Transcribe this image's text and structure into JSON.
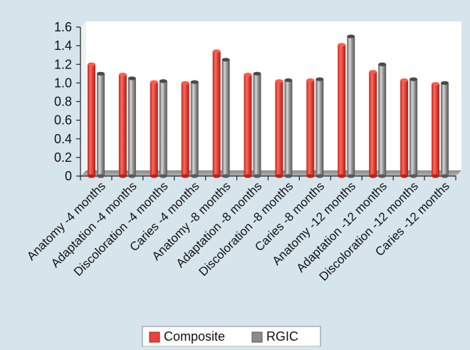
{
  "chart_data": {
    "type": "bar",
    "categories": [
      "Anatomy -4 months",
      "Adaptation -4 months",
      "Discoloration -4 months",
      "Caries -4 months",
      "Anatomy -8 months",
      "Adaptation -8 months",
      "Discoloration -8 months",
      "Caries -8 months",
      "Anatomy -12 months",
      "Adaptation -12 months",
      "Discoloration -12 months",
      "Caries -12 months"
    ],
    "series": [
      {
        "name": "Composite",
        "color": "#e8443a",
        "values": [
          1.2,
          1.09,
          1.01,
          1.0,
          1.34,
          1.09,
          1.02,
          1.03,
          1.41,
          1.12,
          1.03,
          0.99
        ]
      },
      {
        "name": "RGIC",
        "color": "#8c8c8c",
        "values": [
          1.1,
          1.05,
          1.02,
          1.01,
          1.25,
          1.1,
          1.03,
          1.04,
          1.5,
          1.2,
          1.04,
          1.0
        ]
      }
    ],
    "yticks": [
      "0",
      "0.2",
      "0.4",
      "0.6",
      "0.8",
      "1.0",
      "1.2",
      "1.4",
      "1.6"
    ],
    "ylim": [
      0,
      1.6
    ],
    "title": "",
    "xlabel": "",
    "ylabel": "",
    "grid": false,
    "legend_position": "bottom"
  }
}
